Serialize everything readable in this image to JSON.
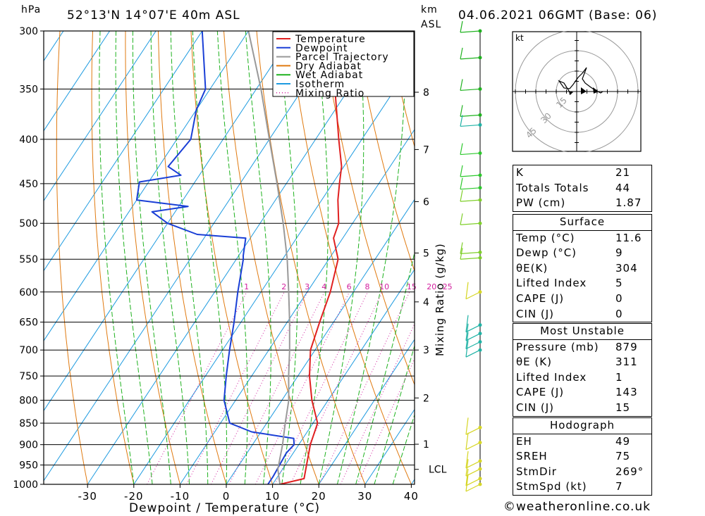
{
  "header": {
    "hpa_unit": "hPa",
    "location": "52°13'N  14°07'E  40m  ASL",
    "km_unit": "km",
    "asl_unit": "ASL",
    "datetime": "04.06.2021  06GMT  (Base: 06)"
  },
  "chart_data": {
    "type": "line",
    "xlabel": "Dewpoint / Temperature (°C)",
    "ylabel": "hPa",
    "x_ticks": [
      -30,
      -20,
      -10,
      0,
      10,
      20,
      30,
      40
    ],
    "pressure_ticks": [
      300,
      350,
      400,
      450,
      500,
      550,
      600,
      650,
      700,
      750,
      800,
      850,
      900,
      950,
      1000
    ],
    "ylim": [
      1000,
      300
    ],
    "y_scale": "log",
    "skew": true,
    "km_ticks": [
      {
        "label": "8",
        "p": 353
      },
      {
        "label": "7",
        "p": 411
      },
      {
        "label": "6",
        "p": 472
      },
      {
        "label": "5",
        "p": 541
      },
      {
        "label": "4",
        "p": 616
      },
      {
        "label": "3",
        "p": 700
      },
      {
        "label": "2",
        "p": 795
      },
      {
        "label": "1",
        "p": 899
      },
      {
        "label": "LCL",
        "p": 961
      }
    ],
    "mixing_ratio_label": "Mixing Ratio (g/kg)",
    "mixing_ratio_values": [
      "1",
      "2",
      "3",
      "4",
      "6",
      "8",
      "10",
      "15",
      "20",
      "25"
    ],
    "legend": [
      {
        "name": "Temperature",
        "color": "#e02020",
        "style": "solid"
      },
      {
        "name": "Dewpoint",
        "color": "#1a3fd6",
        "style": "solid"
      },
      {
        "name": "Parcel Trajectory",
        "color": "#999999",
        "style": "solid"
      },
      {
        "name": "Dry Adiabat",
        "color": "#e07a10",
        "style": "solid"
      },
      {
        "name": "Wet Adiabat",
        "color": "#1fb21f",
        "style": "solid"
      },
      {
        "name": "Isotherm",
        "color": "#1e9be0",
        "style": "solid"
      },
      {
        "name": "Mixing Ratio",
        "color": "#d21f9e",
        "style": "dotted"
      }
    ],
    "series": [
      {
        "name": "Temperature",
        "points": [
          [
            1000,
            11.6
          ],
          [
            985,
            16.0
          ],
          [
            960,
            15.0
          ],
          [
            900,
            12.5
          ],
          [
            850,
            11.0
          ],
          [
            800,
            6.5
          ],
          [
            750,
            2.5
          ],
          [
            700,
            -1.0
          ],
          [
            650,
            -3.0
          ],
          [
            600,
            -5.0
          ],
          [
            550,
            -8.0
          ],
          [
            520,
            -12.0
          ],
          [
            500,
            -13.0
          ],
          [
            470,
            -16.5
          ],
          [
            450,
            -18.5
          ],
          [
            430,
            -20.5
          ],
          [
            400,
            -25.0
          ],
          [
            350,
            -33.0
          ],
          [
            300,
            -42.0
          ]
        ]
      },
      {
        "name": "Dewpoint",
        "points": [
          [
            1000,
            9.0
          ],
          [
            980,
            9.0
          ],
          [
            920,
            8.5
          ],
          [
            900,
            9.0
          ],
          [
            885,
            8.0
          ],
          [
            870,
            -2.0
          ],
          [
            850,
            -8.0
          ],
          [
            800,
            -12.5
          ],
          [
            750,
            -15.5
          ],
          [
            700,
            -18.5
          ],
          [
            650,
            -21.5
          ],
          [
            600,
            -25.0
          ],
          [
            550,
            -28.5
          ],
          [
            545,
            -29.0
          ],
          [
            520,
            -31.0
          ],
          [
            515,
            -42.0
          ],
          [
            500,
            -50.0
          ],
          [
            485,
            -55.0
          ],
          [
            478,
            -48.0
          ],
          [
            470,
            -60.0
          ],
          [
            448,
            -62.0
          ],
          [
            440,
            -54.0
          ],
          [
            430,
            -58.0
          ],
          [
            400,
            -57.0
          ],
          [
            370,
            -60.0
          ],
          [
            350,
            -61.0
          ],
          [
            300,
            -70.0
          ]
        ]
      },
      {
        "name": "Parcel Trajectory",
        "points": [
          [
            1000,
            11.6
          ],
          [
            961,
            9.0
          ],
          [
            900,
            6.5
          ],
          [
            850,
            4.0
          ],
          [
            800,
            1.5
          ],
          [
            750,
            -2.0
          ],
          [
            700,
            -5.5
          ],
          [
            650,
            -9.5
          ],
          [
            600,
            -14.0
          ],
          [
            550,
            -19.0
          ],
          [
            500,
            -25.0
          ],
          [
            450,
            -32.0
          ],
          [
            400,
            -40.0
          ],
          [
            350,
            -49.0
          ],
          [
            300,
            -60.0
          ]
        ]
      }
    ]
  },
  "wind_profile": {
    "hodograph_unit": "kt",
    "ring_labels": [
      "15",
      "30",
      "45"
    ]
  },
  "indices": {
    "rows": [
      {
        "key": "K",
        "value": "21"
      },
      {
        "key": "Totals Totals",
        "value": "44"
      },
      {
        "key": "PW (cm)",
        "value": "1.87"
      }
    ]
  },
  "surface": {
    "title": "Surface",
    "rows": [
      {
        "key": "Temp (°C)",
        "value": "11.6"
      },
      {
        "key": "Dewp (°C)",
        "value": "9"
      },
      {
        "key": "θE(K)",
        "value": "304"
      },
      {
        "key": "Lifted Index",
        "value": "5"
      },
      {
        "key": "CAPE (J)",
        "value": "0"
      },
      {
        "key": "CIN (J)",
        "value": "0"
      }
    ]
  },
  "most_unstable": {
    "title": "Most Unstable",
    "rows": [
      {
        "key": "Pressure (mb)",
        "value": "879"
      },
      {
        "key": "θE (K)",
        "value": "311"
      },
      {
        "key": "Lifted Index",
        "value": "1"
      },
      {
        "key": "CAPE (J)",
        "value": "143"
      },
      {
        "key": "CIN (J)",
        "value": "15"
      }
    ]
  },
  "hodograph_stats": {
    "title": "Hodograph",
    "rows": [
      {
        "key": "EH",
        "value": "49"
      },
      {
        "key": "SREH",
        "value": "75"
      },
      {
        "key": "StmDir",
        "value": "269°"
      },
      {
        "key": "StmSpd (kt)",
        "value": "7"
      }
    ]
  },
  "footer": {
    "credit": "©weatheronline.co.uk"
  }
}
